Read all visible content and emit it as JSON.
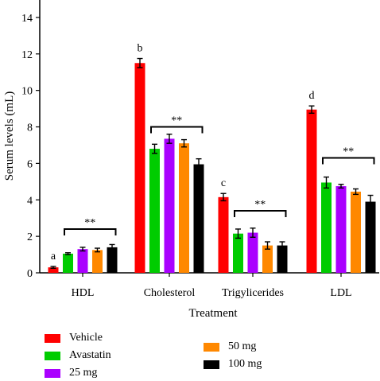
{
  "chart_data": {
    "type": "bar",
    "title": "",
    "xlabel": "Treatment",
    "ylabel": "Serum levels (mL)",
    "ylim": [
      0,
      15
    ],
    "yticks": [
      0,
      2,
      4,
      6,
      8,
      10,
      12,
      14
    ],
    "categories": [
      "HDL",
      "Cholesterol",
      "Trigylicerides",
      "LDL"
    ],
    "series": [
      {
        "name": "Vehicle",
        "color": "#ff0000",
        "values": [
          0.3,
          11.5,
          4.15,
          8.95
        ],
        "errors": [
          0.05,
          0.25,
          0.2,
          0.2
        ]
      },
      {
        "name": "Avastatin",
        "color": "#00cc00",
        "values": [
          1.05,
          6.8,
          2.15,
          4.95
        ],
        "errors": [
          0.05,
          0.25,
          0.25,
          0.3
        ]
      },
      {
        "name": "25 mg",
        "color": "#aa00ff",
        "values": [
          1.3,
          7.35,
          2.2,
          4.75
        ],
        "errors": [
          0.1,
          0.25,
          0.25,
          0.1
        ]
      },
      {
        "name": "50 mg",
        "color": "#ff8800",
        "values": [
          1.25,
          7.1,
          1.5,
          4.45
        ],
        "errors": [
          0.1,
          0.2,
          0.2,
          0.15
        ]
      },
      {
        "name": "100 mg",
        "color": "#000000",
        "values": [
          1.4,
          5.95,
          1.5,
          3.9
        ],
        "errors": [
          0.15,
          0.3,
          0.2,
          0.35
        ]
      }
    ],
    "letter_annotations": [
      "a",
      "b",
      "c",
      "d"
    ],
    "significance_label": "**",
    "significance_bracket_levels": [
      2.4,
      8.0,
      3.4,
      6.3
    ],
    "legend_placement": "bottom",
    "grid": false
  }
}
